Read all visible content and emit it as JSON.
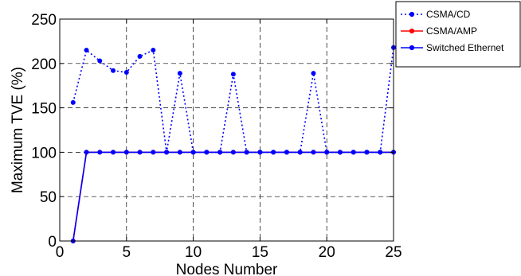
{
  "chart_data": {
    "type": "line",
    "xlabel": "Nodes Number",
    "ylabel": "Maximum TVE (%)",
    "xlim": [
      0,
      25
    ],
    "ylim": [
      0,
      250
    ],
    "xticks": [
      0,
      5,
      10,
      15,
      20,
      25
    ],
    "yticks": [
      0,
      50,
      100,
      150,
      200,
      250
    ],
    "grid": true,
    "legend_position": "outside-right-top",
    "x": [
      1,
      2,
      3,
      4,
      5,
      6,
      7,
      8,
      9,
      10,
      11,
      12,
      13,
      14,
      15,
      16,
      17,
      18,
      19,
      20,
      21,
      22,
      23,
      24,
      25
    ],
    "series": [
      {
        "name": "CSMA/CD",
        "color": "#0000ff",
        "line_style": "dotted",
        "values": [
          156,
          215,
          203,
          192,
          190,
          208,
          215,
          100,
          189,
          100,
          100,
          100,
          188,
          100,
          100,
          100,
          100,
          100,
          189,
          100,
          100,
          100,
          100,
          100,
          218
        ]
      },
      {
        "name": "CSMA/AMP",
        "color": "#ff0000",
        "line_style": "solid",
        "values": [
          0,
          100,
          100,
          100,
          100,
          100,
          100,
          100,
          100,
          100,
          100,
          100,
          100,
          100,
          100,
          100,
          100,
          100,
          100,
          100,
          100,
          100,
          100,
          100,
          100
        ]
      },
      {
        "name": "Switched Ethernet",
        "color": "#0000ff",
        "line_style": "solid",
        "values": [
          0,
          100,
          100,
          100,
          100,
          100,
          100,
          100,
          100,
          100,
          100,
          100,
          100,
          100,
          100,
          100,
          100,
          100,
          100,
          100,
          100,
          100,
          100,
          100,
          100
        ]
      }
    ]
  }
}
